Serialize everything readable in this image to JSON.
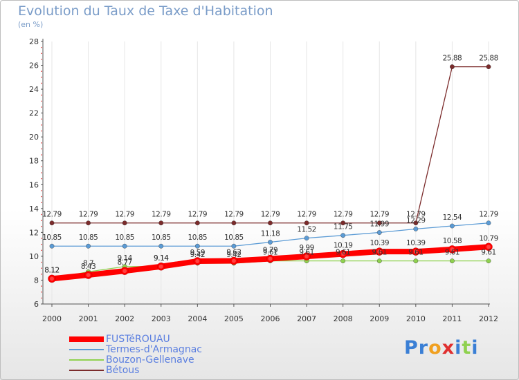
{
  "chart_data": {
    "type": "line",
    "title": "Evolution du Taux de Taxe d'Habitation",
    "subtitle": "(en %)",
    "x": [
      "2000",
      "2001",
      "2002",
      "2003",
      "2004",
      "2005",
      "2006",
      "2007",
      "2008",
      "2009",
      "2010",
      "2011",
      "2012"
    ],
    "ylim": [
      6,
      28
    ],
    "yticks": [
      6,
      8,
      10,
      12,
      14,
      16,
      18,
      20,
      22,
      24,
      26,
      28
    ],
    "grid": "vertical",
    "legend_position": "bottom-left",
    "series": [
      {
        "name": "FUSTéROUAU",
        "color": "#ff0000",
        "values": [
          8.12,
          8.43,
          8.77,
          9.14,
          9.59,
          9.62,
          9.79,
          9.99,
          10.19,
          10.39,
          10.39,
          10.58,
          10.79
        ],
        "labels": [
          "8.12",
          "8.43",
          "8.77",
          "9.14",
          "9.59",
          "9.62",
          "9.79",
          "9.99",
          "10.19",
          "10.39",
          "10.39",
          "10.58",
          "10.79"
        ]
      },
      {
        "name": "Termes-d'Armagnac",
        "color": "#5b9bd5",
        "values": [
          10.85,
          10.85,
          10.85,
          10.85,
          10.85,
          10.85,
          11.18,
          11.52,
          11.75,
          11.99,
          12.29,
          12.54,
          12.79
        ],
        "labels": [
          "10.85",
          "10.85",
          "10.85",
          "10.85",
          "10.85",
          "10.85",
          "11.18",
          "11.52",
          "11.75",
          "11.99",
          "12.29",
          "12.54",
          "12.79"
        ]
      },
      {
        "name": "Bouzon-Gellenave",
        "color": "#8fd14f",
        "values": [
          8.12,
          8.7,
          9.14,
          9.14,
          9.42,
          9.42,
          9.61,
          9.61,
          9.61,
          9.61,
          9.61,
          9.61,
          9.61
        ],
        "labels": [
          "8.12",
          "8.7",
          "9.14",
          "9.14",
          "9.42",
          "9.42",
          "9.61",
          "9.61",
          "9.61",
          "9.61",
          "9.61",
          "9.61",
          "9.61"
        ]
      },
      {
        "name": "Bétous",
        "color": "#7b2b2b",
        "values": [
          12.79,
          12.79,
          12.79,
          12.79,
          12.79,
          12.79,
          12.79,
          12.79,
          12.79,
          12.79,
          12.79,
          25.88,
          25.88
        ],
        "labels": [
          "12.79",
          "12.79",
          "12.79",
          "12.79",
          "12.79",
          "12.79",
          "12.79",
          "12.79",
          "12.79",
          "12.79",
          "12.79",
          "25.88",
          "25.88"
        ]
      }
    ]
  },
  "logo": {
    "letters": [
      {
        "char": "P",
        "color": "#3a7fd5"
      },
      {
        "char": "r",
        "color": "#3a7fd5"
      },
      {
        "char": "o",
        "color": "#f0a020"
      },
      {
        "char": "x",
        "color": "#e03030"
      },
      {
        "char": "i",
        "color": "#3a7fd5"
      },
      {
        "char": "t",
        "color": "#8fd14f"
      },
      {
        "char": "i",
        "color": "#3a7fd5"
      }
    ]
  }
}
